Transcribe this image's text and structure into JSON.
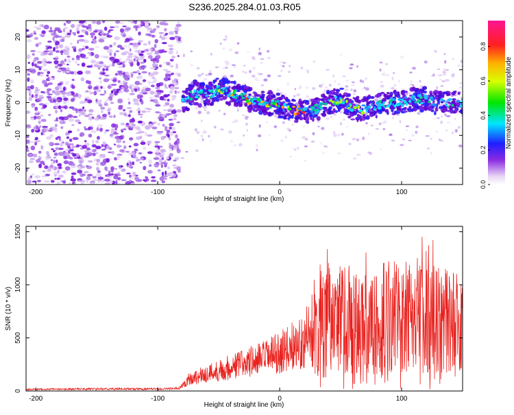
{
  "figure": {
    "title": "S236.2025.284.01.03.R05"
  },
  "chart_data": [
    {
      "type": "heatmap",
      "name": "spectrogram",
      "title": "S236.2025.284.01.03.R05",
      "xlabel": "Height of straight line (km)",
      "ylabel": "Frequency (Hz)",
      "xlim": [
        -208,
        150
      ],
      "ylim": [
        -25,
        25
      ],
      "xticks": [
        -200,
        -100,
        0,
        100
      ],
      "xtick_labels": [
        "-200",
        "-100",
        "0",
        "100"
      ],
      "yticks": [
        -20,
        -10,
        0,
        10,
        20
      ],
      "ytick_labels": [
        "-20",
        "-10",
        "0",
        "10",
        "20"
      ],
      "noise_region_x": [
        -208,
        -82
      ],
      "signal_ridge": {
        "x": [
          -80,
          -70,
          -60,
          -50,
          -40,
          -30,
          -20,
          -10,
          0,
          10,
          20,
          30,
          40,
          50,
          60,
          70,
          80,
          90,
          100,
          110,
          120,
          130,
          140,
          150
        ],
        "y": [
          0,
          3,
          2,
          4,
          3,
          2,
          0,
          0,
          -1,
          -2,
          -3,
          -2,
          0,
          1,
          -2,
          -2,
          -1,
          0,
          0,
          1,
          1,
          0,
          0,
          0
        ]
      },
      "colorbar": {
        "label": "Normalized spectral amplitude",
        "range": [
          0.0,
          0.95
        ],
        "ticks": [
          0.0,
          0.2,
          0.4,
          0.6,
          0.8
        ],
        "tick_labels": [
          "0.0",
          "0.2",
          "0.4",
          "0.6",
          "0.8"
        ]
      }
    },
    {
      "type": "line",
      "name": "snr",
      "xlabel": "Height of straight line (km)",
      "ylabel": "SNR (10 * v/v)",
      "xlim": [
        -208,
        150
      ],
      "ylim": [
        0,
        1550
      ],
      "xticks": [
        -200,
        -100,
        0,
        100
      ],
      "xtick_labels": [
        "-200",
        "-100",
        "0",
        "100"
      ],
      "yticks": [
        0,
        500,
        1000,
        1500
      ],
      "ytick_labels": [
        "0",
        "500",
        "1000",
        "1500"
      ],
      "series": [
        {
          "name": "SNR",
          "color": "#e8221e",
          "x": [
            -208,
            -150,
            -100,
            -82,
            -75,
            -60,
            -45,
            -30,
            -15,
            0,
            10,
            20,
            30,
            40,
            50,
            60,
            70,
            80,
            90,
            100,
            110,
            120,
            130,
            140,
            150
          ],
          "y": [
            15,
            20,
            18,
            25,
            110,
            160,
            210,
            260,
            300,
            360,
            420,
            470,
            680,
            700,
            680,
            660,
            650,
            680,
            700,
            700,
            690,
            680,
            670,
            660,
            660
          ]
        }
      ]
    }
  ]
}
